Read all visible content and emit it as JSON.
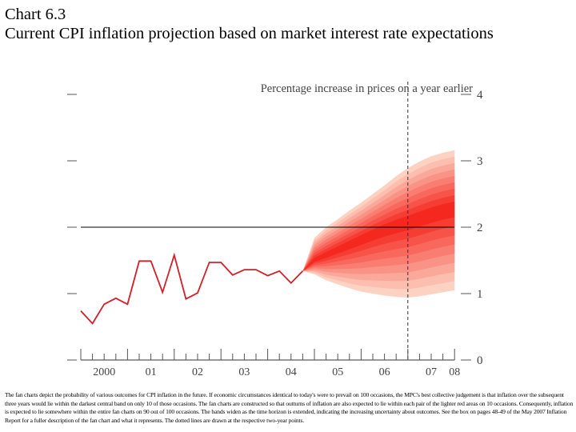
{
  "title_line1": "Chart 6.3",
  "title_line2": "Current CPI inflation projection based on market interest rate expectations",
  "chart_data": {
    "type": "fan",
    "ylabel": "Percentage increase in prices on a year earlier",
    "ylim": [
      0,
      4
    ],
    "yticks": [
      "0",
      "1",
      "2",
      "3",
      "4"
    ],
    "xtick_labels": [
      "2000",
      "01",
      "02",
      "03",
      "04",
      "05",
      "06",
      "07",
      "08"
    ],
    "x_start": "2000 Q1",
    "x_end": "2008 Q1",
    "reference_line": 2,
    "dotted_line_at": "2007 Q1",
    "history": {
      "quarters": [
        "2000 Q1",
        "2000 Q2",
        "2000 Q3",
        "2000 Q4",
        "2001 Q1",
        "2001 Q2",
        "2001 Q3",
        "2001 Q4",
        "2002 Q1",
        "2002 Q2",
        "2002 Q3",
        "2002 Q4",
        "2003 Q1",
        "2003 Q2",
        "2003 Q3",
        "2003 Q4",
        "2004 Q1",
        "2004 Q2",
        "2004 Q3",
        "2004 Q4"
      ],
      "values": [
        0.74,
        0.55,
        0.84,
        0.93,
        0.84,
        1.49,
        1.49,
        1.02,
        1.58,
        0.92,
        1.01,
        1.47,
        1.47,
        1.28,
        1.36,
        1.36,
        1.27,
        1.34,
        1.16,
        1.34
      ]
    },
    "projection": {
      "quarters": [
        "2004 Q4",
        "2005 Q1",
        "2005 Q2",
        "2005 Q3",
        "2005 Q4",
        "2006 Q1",
        "2006 Q2",
        "2006 Q3",
        "2006 Q4",
        "2007 Q1",
        "2007 Q2",
        "2007 Q3",
        "2007 Q4",
        "2008 Q1"
      ],
      "central": [
        1.34,
        1.5,
        1.58,
        1.66,
        1.74,
        1.82,
        1.9,
        1.97,
        2.03,
        2.08,
        2.14,
        2.2,
        2.25,
        2.29
      ],
      "lower_90": [
        1.34,
        1.29,
        1.2,
        1.14,
        1.08,
        1.03,
        1.0,
        0.97,
        0.95,
        0.94,
        0.96,
        0.99,
        1.02,
        1.05
      ],
      "upper_90": [
        1.34,
        1.84,
        2.0,
        2.12,
        2.25,
        2.37,
        2.5,
        2.63,
        2.77,
        2.89,
        2.99,
        3.07,
        3.12,
        3.16
      ],
      "bands": 9
    },
    "colors": {
      "history_line": "#d0202a",
      "fan_dark": "#f5281f",
      "fan_light": "#fcd3c3",
      "reference_line": "#000000"
    },
    "grid": false
  },
  "footnote": "The fan charts depict the probability of various outcomes for CPI inflation in the future. If economic circumstances identical to today's were to prevail on 100 occasions, the MPC's best collective judgement is that inflation over the subsequent three years would lie within the darkest central band on only 10 of those occasions. The fan charts are constructed so that outturns of inflation are also expected to lie within each pair of the lighter red areas on 10 occasions. Consequently, inflation is expected to lie somewhere within the entire fan charts on 90 out of 100 occasions. The bands widen as the time horizon is extended, indicating the increasing uncertainty about outcomes. See the box on pages 48-49 of the May 2007 Inflation Report for a fuller description of the fan chart and what it represents. The dotted lines are drawn at the respective two-year points."
}
